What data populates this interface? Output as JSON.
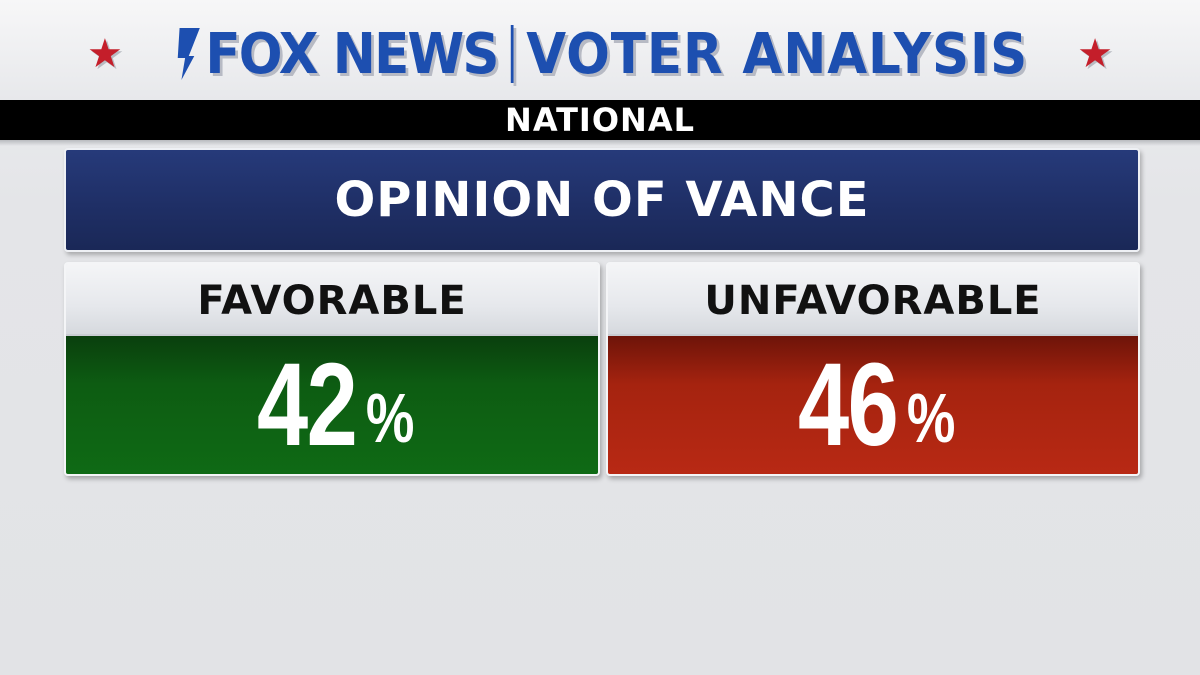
{
  "header": {
    "brand": "FOX NEWS",
    "title": "VOTER ANALYSIS",
    "region": "NATIONAL"
  },
  "question": "OPINION OF VANCE",
  "results": [
    {
      "label": "FAVORABLE",
      "value": "42",
      "unit": "%",
      "color": "#0f6a15"
    },
    {
      "label": "UNFAVORABLE",
      "value": "46",
      "unit": "%",
      "color": "#b82914"
    }
  ],
  "colors": {
    "brand": "#1d4fb0",
    "star": "#c41e2a",
    "banner": "#1f2f66"
  }
}
